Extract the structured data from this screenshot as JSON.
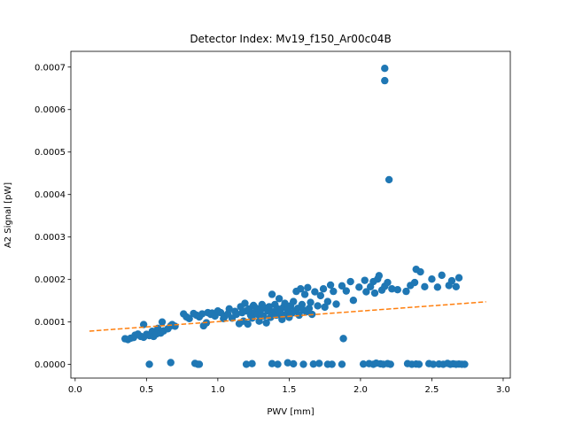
{
  "chart_data": {
    "type": "scatter",
    "title": "Detector Index: Mv19_f150_Ar00c04B",
    "xlabel": "PWV [mm]",
    "ylabel": "A2 Signal [pW]",
    "xlim": [
      -0.03,
      3.05
    ],
    "ylim": [
      -3.2e-05,
      0.000737
    ],
    "xticks": [
      0.0,
      0.5,
      1.0,
      1.5,
      2.0,
      2.5,
      3.0
    ],
    "xtick_labels": [
      "0.0",
      "0.5",
      "1.0",
      "1.5",
      "2.0",
      "2.5",
      "3.0"
    ],
    "yticks": [
      0.0,
      0.0001,
      0.0002,
      0.0003,
      0.0004,
      0.0005,
      0.0006,
      0.0007
    ],
    "ytick_labels": [
      "0.0000",
      "0.0001",
      "0.0002",
      "0.0003",
      "0.0004",
      "0.0005",
      "0.0006",
      "0.0007"
    ],
    "colors": {
      "points": "#1f77b4",
      "fit": "#ff7f0e"
    },
    "fit_line": {
      "style": "dashed",
      "x": [
        0.1,
        2.88
      ],
      "y": [
        7.85e-05,
        0.0001475
      ]
    },
    "series": [
      {
        "name": "data",
        "points": [
          [
            0.35,
            6.05e-05
          ],
          [
            0.37,
            5.85e-05
          ],
          [
            0.39,
            6.2e-05
          ],
          [
            0.41,
            6.35e-05
          ],
          [
            0.42,
            6.9e-05
          ],
          [
            0.44,
            7.15e-05
          ],
          [
            0.46,
            6.6e-05
          ],
          [
            0.48,
            6.4e-05
          ],
          [
            0.48,
            9.4e-05
          ],
          [
            0.5,
            7.1e-05
          ],
          [
            0.52,
            6.8e-05
          ],
          [
            0.54,
            7.8e-05
          ],
          [
            0.55,
            6.6e-05
          ],
          [
            0.57,
            7.2e-05
          ],
          [
            0.58,
            8.5e-05
          ],
          [
            0.6,
            7.4e-05
          ],
          [
            0.61,
            0.0001
          ],
          [
            0.62,
            7.9e-05
          ],
          [
            0.65,
            8.4e-05
          ],
          [
            0.67,
            9.1e-05
          ],
          [
            0.68,
            9.4e-05
          ],
          [
            0.7,
            9e-05
          ],
          [
            0.76,
            0.000119
          ],
          [
            0.78,
            0.000112
          ],
          [
            0.8,
            0.000108
          ],
          [
            0.83,
            0.00012
          ],
          [
            0.85,
            0.000116
          ],
          [
            0.87,
            0.000112
          ],
          [
            0.89,
            0.000119
          ],
          [
            0.9,
            9.1e-05
          ],
          [
            0.92,
            9.8e-05
          ],
          [
            0.93,
            0.000122
          ],
          [
            0.95,
            0.000118
          ],
          [
            0.96,
            0.000121
          ],
          [
            0.98,
            0.000114
          ],
          [
            1.0,
            0.000126
          ],
          [
            1.02,
            0.000122
          ],
          [
            1.04,
            0.000108
          ],
          [
            1.05,
            0.000114
          ],
          [
            1.07,
            0.000119
          ],
          [
            1.08,
            0.000131
          ],
          [
            1.1,
            0.000109
          ],
          [
            1.12,
            0.000125
          ],
          [
            1.13,
            0.000118
          ],
          [
            1.15,
            9.6e-05
          ],
          [
            1.16,
            0.000136
          ],
          [
            1.17,
            0.000122
          ],
          [
            1.18,
            0.000102
          ],
          [
            1.19,
            0.000144
          ],
          [
            1.2,
            0.000126
          ],
          [
            1.21,
            9.5e-05
          ],
          [
            1.22,
            0.000131
          ],
          [
            1.23,
            0.000116
          ],
          [
            1.24,
            0.000109
          ],
          [
            1.25,
            0.000139
          ],
          [
            1.26,
            0.000122
          ],
          [
            1.27,
            0.000132
          ],
          [
            1.28,
            0.000118
          ],
          [
            1.29,
            0.000102
          ],
          [
            1.3,
            0.000128
          ],
          [
            1.31,
            0.000141
          ],
          [
            1.32,
            0.000114
          ],
          [
            1.33,
            0.000133
          ],
          [
            1.34,
            9.8e-05
          ],
          [
            1.35,
            0.000126
          ],
          [
            1.36,
            0.000136
          ],
          [
            1.37,
            0.000111
          ],
          [
            1.38,
            0.000165
          ],
          [
            1.39,
            0.000124
          ],
          [
            1.4,
            0.000141
          ],
          [
            1.41,
            0.000116
          ],
          [
            1.42,
            0.000131
          ],
          [
            1.43,
            0.000155
          ],
          [
            1.44,
            0.000121
          ],
          [
            1.45,
            0.000106
          ],
          [
            1.46,
            0.000135
          ],
          [
            1.47,
            0.000144
          ],
          [
            1.48,
            0.000118
          ],
          [
            1.49,
            0.000128
          ],
          [
            1.5,
            0.000111
          ],
          [
            1.51,
            0.000138
          ],
          [
            1.52,
            0.000121
          ],
          [
            1.53,
            0.000148
          ],
          [
            1.54,
            0.000126
          ],
          [
            1.55,
            0.000172
          ],
          [
            1.56,
            0.000132
          ],
          [
            1.57,
            0.000116
          ],
          [
            1.58,
            0.000178
          ],
          [
            1.59,
            0.000141
          ],
          [
            1.6,
            0.000128
          ],
          [
            1.61,
            0.000165
          ],
          [
            1.62,
            0.000124
          ],
          [
            1.63,
            0.000181
          ],
          [
            1.64,
            0.000132
          ],
          [
            1.65,
            0.000146
          ],
          [
            1.66,
            0.000118
          ],
          [
            1.68,
            0.000171
          ],
          [
            1.7,
            0.000138
          ],
          [
            1.72,
            0.000162
          ],
          [
            1.74,
            0.000178
          ],
          [
            1.75,
            0.000135
          ],
          [
            1.77,
            0.000148
          ],
          [
            1.79,
            0.000187
          ],
          [
            1.81,
            0.000172
          ],
          [
            1.83,
            0.000142
          ],
          [
            1.87,
            0.000185
          ],
          [
            1.9,
            0.000173
          ],
          [
            1.93,
            0.000195
          ],
          [
            1.95,
            0.000151
          ],
          [
            1.99,
            0.000182
          ],
          [
            2.03,
            0.000198
          ],
          [
            2.04,
            0.000171
          ],
          [
            2.07,
            0.000183
          ],
          [
            2.09,
            0.000195
          ],
          [
            2.1,
            0.000168
          ],
          [
            2.12,
            0.000201
          ],
          [
            2.13,
            0.000209
          ],
          [
            2.15,
            0.000175
          ],
          [
            2.17,
            0.000184
          ],
          [
            2.19,
            0.000193
          ],
          [
            2.22,
            0.000178
          ],
          [
            2.26,
            0.000176
          ],
          [
            2.32,
            0.000172
          ],
          [
            2.35,
            0.000186
          ],
          [
            2.38,
            0.000193
          ],
          [
            2.39,
            0.000224
          ],
          [
            2.42,
            0.000218
          ],
          [
            2.45,
            0.000183
          ],
          [
            2.5,
            0.000201
          ],
          [
            2.54,
            0.000182
          ],
          [
            2.57,
            0.00021
          ],
          [
            2.62,
            0.000186
          ],
          [
            2.64,
            0.000197
          ],
          [
            2.67,
            0.000183
          ],
          [
            2.69,
            0.000204
          ],
          [
            2.17,
            0.000697
          ],
          [
            2.17,
            0.000668
          ],
          [
            2.2,
            0.000435
          ],
          [
            1.88,
            6.1e-05
          ],
          [
            0.52,
            5e-07
          ],
          [
            0.67,
            4.5e-06
          ],
          [
            0.84,
            2.5e-06
          ],
          [
            0.86,
            5e-07
          ],
          [
            0.87,
            5e-07
          ],
          [
            1.2,
            5e-07
          ],
          [
            1.24,
            2e-06
          ],
          [
            1.38,
            2e-06
          ],
          [
            1.42,
            5e-07
          ],
          [
            1.49,
            4e-06
          ],
          [
            1.53,
            1.5e-06
          ],
          [
            1.6,
            5e-07
          ],
          [
            1.67,
            1e-06
          ],
          [
            1.71,
            2.5e-06
          ],
          [
            1.77,
            5e-07
          ],
          [
            1.8,
            5e-07
          ],
          [
            1.87,
            5e-07
          ],
          [
            2.02,
            1e-06
          ],
          [
            2.06,
            2e-06
          ],
          [
            2.09,
            5e-07
          ],
          [
            2.11,
            3e-06
          ],
          [
            2.14,
            1.5e-06
          ],
          [
            2.16,
            5e-07
          ],
          [
            2.19,
            2e-06
          ],
          [
            2.21,
            5e-07
          ],
          [
            2.33,
            2e-06
          ],
          [
            2.36,
            5e-07
          ],
          [
            2.39,
            1e-06
          ],
          [
            2.41,
            5e-07
          ],
          [
            2.48,
            2e-06
          ],
          [
            2.51,
            5e-07
          ],
          [
            2.55,
            1e-06
          ],
          [
            2.58,
            5e-07
          ],
          [
            2.61,
            2.5e-06
          ],
          [
            2.63,
            5e-07
          ],
          [
            2.65,
            1.5e-06
          ],
          [
            2.67,
            5e-07
          ],
          [
            2.69,
            1e-06
          ],
          [
            2.71,
            5e-07
          ],
          [
            2.73,
            5e-07
          ]
        ]
      }
    ]
  }
}
